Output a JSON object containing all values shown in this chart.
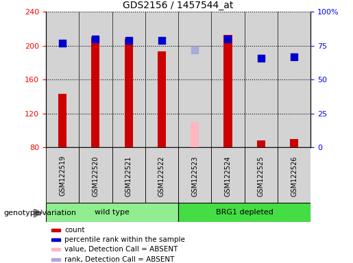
{
  "title": "GDS2156 / 1457544_at",
  "samples": [
    "GSM122519",
    "GSM122520",
    "GSM122521",
    "GSM122522",
    "GSM122523",
    "GSM122524",
    "GSM122525",
    "GSM122526"
  ],
  "bar_values": [
    143,
    210,
    208,
    193,
    null,
    213,
    88,
    90
  ],
  "absent_bar_values": [
    null,
    null,
    null,
    null,
    110,
    null,
    null,
    null
  ],
  "absent_bar_color": "#ffb6c1",
  "rank_values": [
    77,
    80,
    79,
    79,
    null,
    80,
    66,
    67
  ],
  "absent_rank_values": [
    null,
    null,
    null,
    null,
    72,
    null,
    null,
    null
  ],
  "absent_rank_color": "#aaaadd",
  "bar_color": "#cc0000",
  "rank_color": "#0000cc",
  "ylim_left": [
    80,
    240
  ],
  "ylim_right": [
    0,
    100
  ],
  "yticks_left": [
    80,
    120,
    160,
    200,
    240
  ],
  "yticks_right": [
    0,
    25,
    50,
    75,
    100
  ],
  "ytick_labels_right": [
    "0",
    "25",
    "50",
    "75",
    "100%"
  ],
  "bar_width": 0.25,
  "marker_size": 60,
  "group_label": "genotype/variation",
  "group1_label": "wild type",
  "group1_color": "#90EE90",
  "group2_label": "BRG1 depleted",
  "group2_color": "#44DD44",
  "sample_box_color": "#d3d3d3",
  "legend_items": [
    {
      "label": "count",
      "color": "#cc0000"
    },
    {
      "label": "percentile rank within the sample",
      "color": "#0000cc"
    },
    {
      "label": "value, Detection Call = ABSENT",
      "color": "#ffb6c1"
    },
    {
      "label": "rank, Detection Call = ABSENT",
      "color": "#aaaadd"
    }
  ]
}
